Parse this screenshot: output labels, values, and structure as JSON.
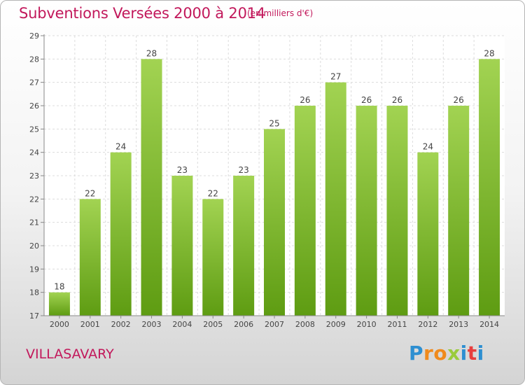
{
  "header": {
    "title": "Subventions Versées 2000 à 2014",
    "subtitle": "(en milliers d'€)"
  },
  "footer": {
    "town": "VILLASAVARY",
    "logo_letters": [
      "P",
      "r",
      "o",
      "x",
      "i",
      "t",
      "i"
    ]
  },
  "colors": {
    "accent": "#c2185b",
    "bar_light": "#9fd04c",
    "bar_dark": "#5f9e14"
  },
  "chart_data": {
    "type": "bar",
    "title": "Subventions Versées 2000 à 2014",
    "subtitle": "(en milliers d'€)",
    "xlabel": "",
    "ylabel": "",
    "categories": [
      "2000",
      "2001",
      "2002",
      "2003",
      "2004",
      "2005",
      "2006",
      "2007",
      "2008",
      "2009",
      "2010",
      "2011",
      "2012",
      "2013",
      "2014"
    ],
    "values": [
      18,
      22,
      24,
      28,
      23,
      22,
      23,
      25,
      26,
      27,
      26,
      26,
      24,
      26,
      28
    ],
    "ylim": [
      17,
      29
    ],
    "yticks": [
      17,
      18,
      19,
      20,
      21,
      22,
      23,
      24,
      25,
      26,
      27,
      28,
      29
    ],
    "grid": true,
    "legend": "none"
  }
}
